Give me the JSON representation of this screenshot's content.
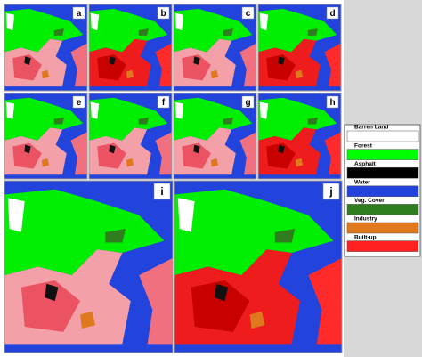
{
  "panels": [
    {
      "label": "a"
    },
    {
      "label": "b"
    },
    {
      "label": "c"
    },
    {
      "label": "d"
    },
    {
      "label": "e"
    },
    {
      "label": "f"
    },
    {
      "label": "g"
    },
    {
      "label": "h"
    },
    {
      "label": "i"
    },
    {
      "label": "j"
    }
  ],
  "legend": [
    {
      "label": "Barren Land",
      "color": "#ffffff"
    },
    {
      "label": "Forest",
      "color": "#00ff00"
    },
    {
      "label": "Asphalt",
      "color": "#000000"
    },
    {
      "label": "Water",
      "color": "#2244dd"
    },
    {
      "label": "Veg. Cover",
      "color": "#2f7d1f"
    },
    {
      "label": "Industry",
      "color": "#e0781e"
    },
    {
      "label": "Built-up",
      "color": "#ff2020"
    }
  ]
}
